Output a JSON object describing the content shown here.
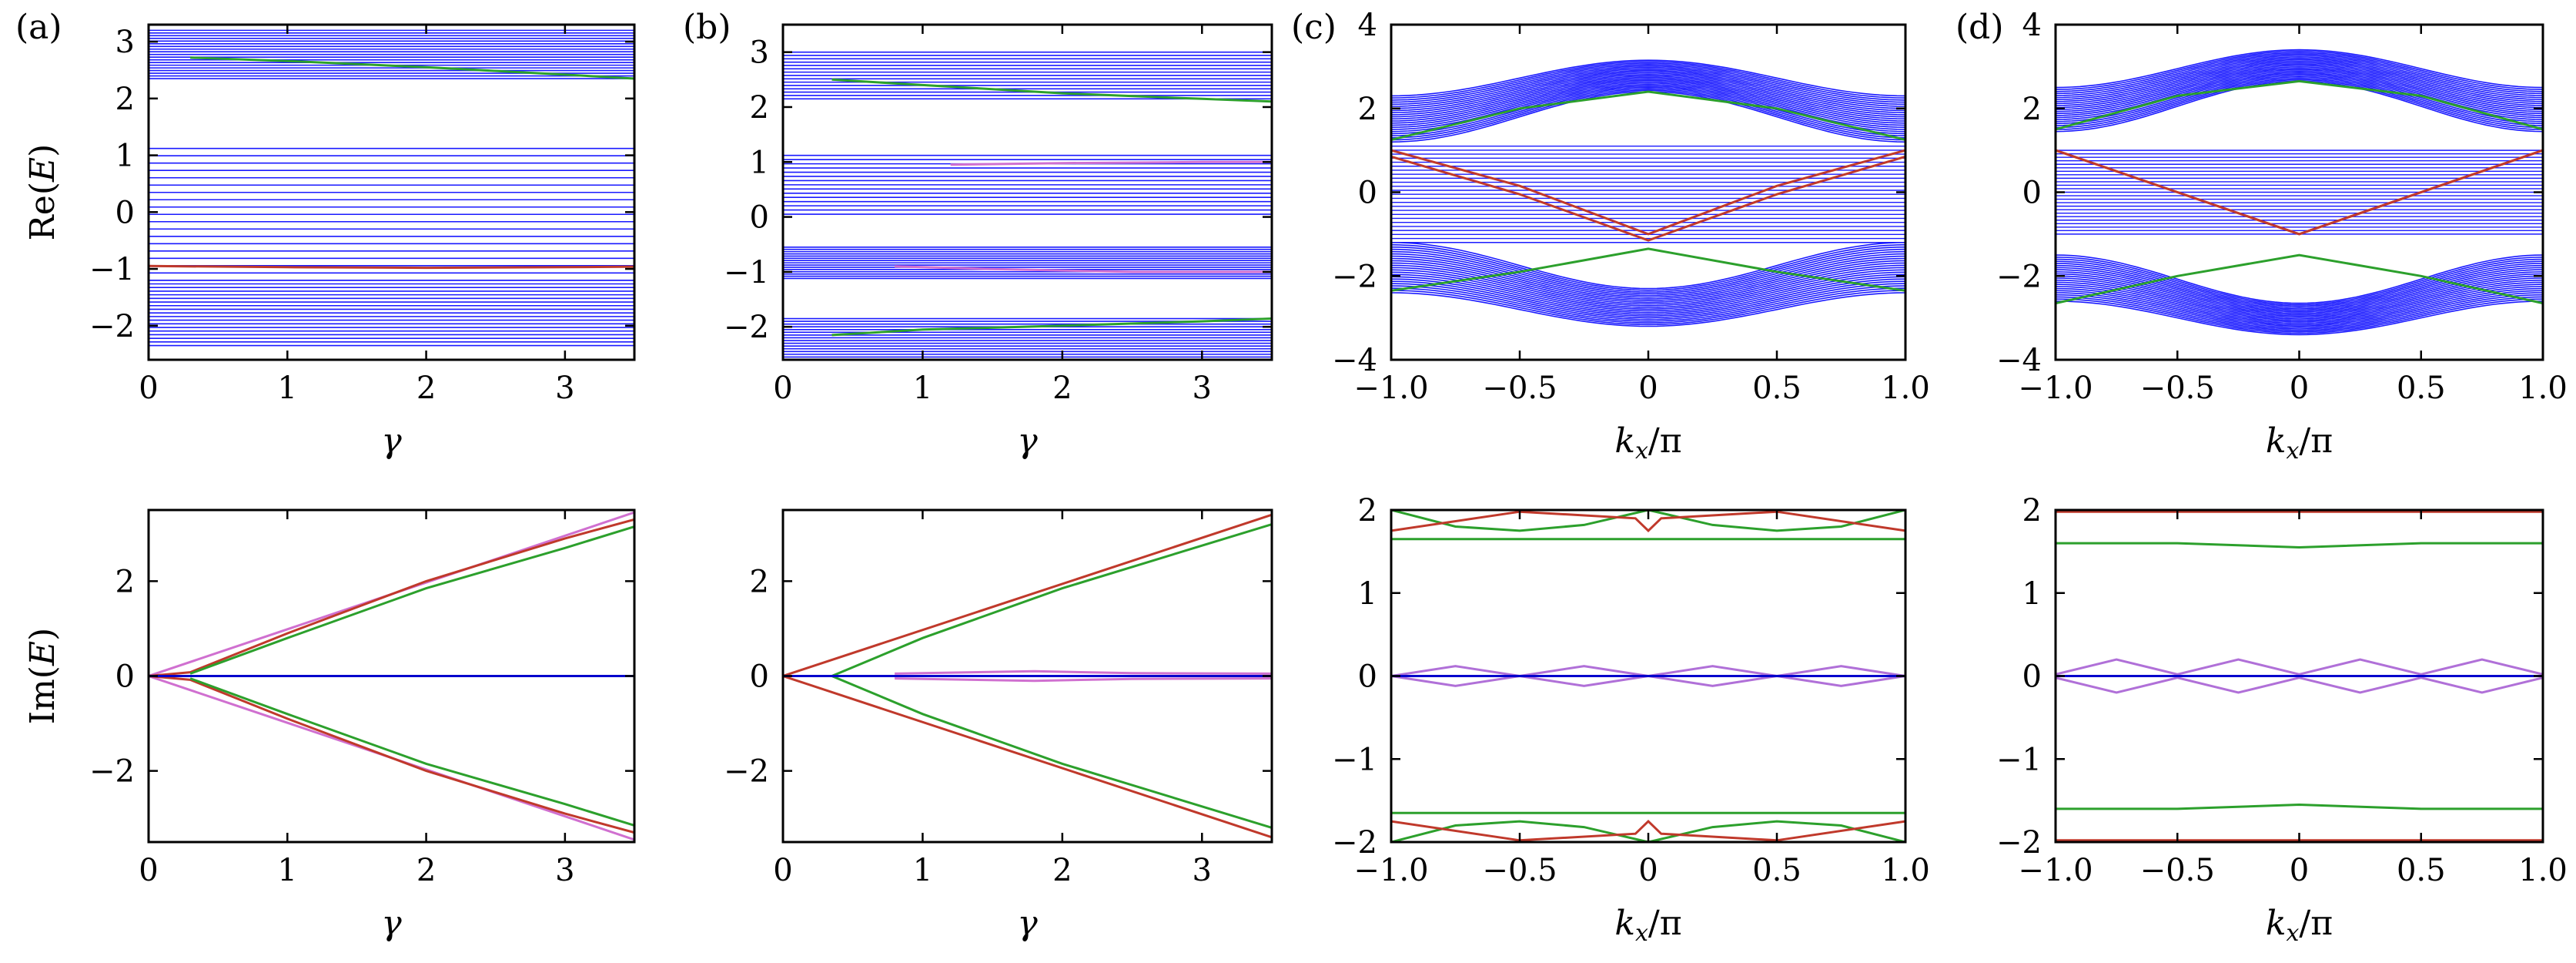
{
  "chart_data": [
    {
      "id": "a-top",
      "panel_label": "(a)",
      "type": "line",
      "xlabel": "γ",
      "ylabel": "Re(E)",
      "xlim": [
        0,
        3.5
      ],
      "ylim": [
        -2.6,
        3.3
      ],
      "xticks": [
        0,
        1,
        2,
        3
      ],
      "xtick_labels": [
        "0",
        "1",
        "2",
        "3"
      ],
      "yticks": [
        -2,
        -1,
        0,
        1,
        2,
        3
      ],
      "ytick_labels": [
        "−2",
        "−1",
        "0",
        "1",
        "2",
        "3"
      ],
      "band_regions": [
        [
          2.35,
          3.2
        ],
        [
          -1.2,
          1.12
        ],
        [
          -2.35,
          -1.2
        ]
      ],
      "band_line_count": 18,
      "series": [
        {
          "color": "#2ca02c",
          "x": [
            0.3,
            1.0,
            2.0,
            3.0,
            3.5
          ],
          "y": [
            2.72,
            2.66,
            2.55,
            2.42,
            2.35
          ]
        },
        {
          "color": "#c0392b",
          "x": [
            0,
            1,
            2,
            3,
            3.5
          ],
          "y": [
            -0.95,
            -0.97,
            -0.98,
            -0.97,
            -0.96
          ]
        }
      ]
    },
    {
      "id": "b-top",
      "panel_label": "(b)",
      "type": "line",
      "xlabel": "γ",
      "ylabel": "",
      "xlim": [
        0,
        3.5
      ],
      "ylim": [
        -2.6,
        3.5
      ],
      "xticks": [
        0,
        1,
        2,
        3
      ],
      "xtick_labels": [
        "0",
        "1",
        "2",
        "3"
      ],
      "yticks": [
        -2,
        -1,
        0,
        1,
        2,
        3
      ],
      "ytick_labels": [
        "−2",
        "−1",
        "0",
        "1",
        "2",
        "3"
      ],
      "band_regions": [
        [
          2.15,
          3.0
        ],
        [
          0.05,
          1.12
        ],
        [
          -1.12,
          -0.55
        ],
        [
          -2.55,
          -1.85
        ]
      ],
      "band_line_count": 14,
      "series": [
        {
          "color": "#2ca02c",
          "x": [
            0.35,
            1.0,
            2.0,
            3.0,
            3.5
          ],
          "y": [
            2.5,
            2.4,
            2.25,
            2.15,
            2.1
          ]
        },
        {
          "color": "#2ca02c",
          "x": [
            0.35,
            1.0,
            2.0,
            3.0,
            3.5
          ],
          "y": [
            -2.15,
            -2.05,
            -1.98,
            -1.9,
            -1.85
          ]
        },
        {
          "color": "#d070d0",
          "x": [
            1.2,
            2.0,
            3.0,
            3.5
          ],
          "y": [
            0.95,
            0.98,
            1.0,
            1.0
          ]
        },
        {
          "color": "#d070d0",
          "x": [
            0.8,
            1.5,
            2.5,
            3.5
          ],
          "y": [
            -0.9,
            -0.95,
            -1.0,
            -1.0
          ]
        }
      ]
    },
    {
      "id": "c-top",
      "panel_label": "(c)",
      "type": "line",
      "xlabel": "kx/π",
      "ylabel": "",
      "xlim": [
        -1,
        1
      ],
      "ylim": [
        -4,
        4
      ],
      "xticks": [
        -1,
        -0.5,
        0,
        0.5,
        1
      ],
      "xtick_labels": [
        "−1.0",
        "−0.5",
        "0",
        "0.5",
        "1.0"
      ],
      "yticks": [
        -4,
        -2,
        0,
        2,
        4
      ],
      "ytick_labels": [
        "−4",
        "−2",
        "0",
        "2",
        "4"
      ],
      "band_curves": [
        {
          "top": [
            2.3,
            3.15
          ],
          "bottom": [
            1.2,
            2.4
          ]
        },
        {
          "top": [
            -1.2,
            -2.3
          ],
          "bottom": [
            -2.4,
            -3.2
          ]
        }
      ],
      "flat_band": [
        -1.2,
        1.1
      ],
      "series": [
        {
          "color": "#2ca02c",
          "x": [
            -1,
            -0.5,
            0,
            0.5,
            1
          ],
          "y": [
            1.25,
            2.0,
            2.4,
            2.0,
            1.25
          ]
        },
        {
          "color": "#2ca02c",
          "x": [
            -1,
            -0.5,
            0,
            0.5,
            1
          ],
          "y": [
            -2.35,
            -1.9,
            -1.35,
            -1.9,
            -2.35
          ]
        },
        {
          "color": "#c0392b",
          "x": [
            -1,
            -0.5,
            0,
            0.5,
            1
          ],
          "y": [
            1.0,
            0.15,
            -1.0,
            0.15,
            1.0
          ]
        },
        {
          "color": "#c0392b",
          "x": [
            -1,
            -0.5,
            0,
            0.5,
            1
          ],
          "y": [
            0.85,
            -0.05,
            -1.15,
            -0.05,
            0.85
          ]
        }
      ]
    },
    {
      "id": "d-top",
      "panel_label": "(d)",
      "type": "line",
      "xlabel": "kx/π",
      "ylabel": "",
      "xlim": [
        -1,
        1
      ],
      "ylim": [
        -4,
        4
      ],
      "xticks": [
        -1,
        -0.5,
        0,
        0.5,
        1
      ],
      "xtick_labels": [
        "−1.0",
        "−0.5",
        "0",
        "0.5",
        "1.0"
      ],
      "yticks": [
        -4,
        -2,
        0,
        2,
        4
      ],
      "ytick_labels": [
        "−4",
        "−2",
        "0",
        "2",
        "4"
      ],
      "band_curves": [
        {
          "top": [
            2.5,
            3.4
          ],
          "bottom": [
            1.45,
            2.65
          ]
        },
        {
          "top": [
            -1.5,
            -2.65
          ],
          "bottom": [
            -2.6,
            -3.4
          ]
        }
      ],
      "flat_band": [
        -1.0,
        1.0
      ],
      "series": [
        {
          "color": "#2ca02c",
          "x": [
            -1,
            -0.5,
            0,
            0.5,
            1
          ],
          "y": [
            1.5,
            2.3,
            2.65,
            2.3,
            1.5
          ]
        },
        {
          "color": "#2ca02c",
          "x": [
            -1,
            -0.5,
            0,
            0.5,
            1
          ],
          "y": [
            -2.65,
            -2.0,
            -1.5,
            -2.0,
            -2.65
          ]
        },
        {
          "color": "#c0392b",
          "x": [
            -1,
            -0.5,
            0,
            0.5,
            1
          ],
          "y": [
            1.0,
            0.0,
            -1.0,
            0.0,
            1.0
          ]
        },
        {
          "color": "#c0392b",
          "x": [
            -1,
            -0.5,
            0,
            0.5,
            1
          ],
          "y": [
            1.0,
            0.0,
            -1.0,
            0.0,
            1.0
          ]
        }
      ]
    },
    {
      "id": "a-bottom",
      "type": "line",
      "xlabel": "γ",
      "ylabel": "Im(E)",
      "xlim": [
        0,
        3.5
      ],
      "ylim": [
        -3.5,
        3.5
      ],
      "xticks": [
        0,
        1,
        2,
        3
      ],
      "xtick_labels": [
        "0",
        "1",
        "2",
        "3"
      ],
      "yticks": [
        -2,
        0,
        2
      ],
      "ytick_labels": [
        "−2",
        "0",
        "2"
      ],
      "series": [
        {
          "color": "#d070d0",
          "x": [
            0,
            3.5
          ],
          "y": [
            0,
            3.45
          ]
        },
        {
          "color": "#d070d0",
          "x": [
            0,
            3.5
          ],
          "y": [
            0,
            -3.45
          ]
        },
        {
          "color": "#c0392b",
          "x": [
            0,
            0.3,
            1,
            2,
            3,
            3.5
          ],
          "y": [
            0,
            0.08,
            0.9,
            2.0,
            2.9,
            3.3
          ]
        },
        {
          "color": "#c0392b",
          "x": [
            0,
            0.3,
            1,
            2,
            3,
            3.5
          ],
          "y": [
            0,
            -0.08,
            -0.9,
            -2.0,
            -2.9,
            -3.3
          ]
        },
        {
          "color": "#2ca02c",
          "x": [
            0.3,
            1,
            2,
            3,
            3.5
          ],
          "y": [
            0.05,
            0.8,
            1.85,
            2.7,
            3.15
          ]
        },
        {
          "color": "#2ca02c",
          "x": [
            0.3,
            1,
            2,
            3,
            3.5
          ],
          "y": [
            -0.05,
            -0.8,
            -1.85,
            -2.7,
            -3.15
          ]
        },
        {
          "color": "#0000cc",
          "x": [
            0,
            3.5
          ],
          "y": [
            0,
            0
          ]
        }
      ]
    },
    {
      "id": "b-bottom",
      "type": "line",
      "xlabel": "γ",
      "ylabel": "",
      "xlim": [
        0,
        3.5
      ],
      "ylim": [
        -3.5,
        3.5
      ],
      "xticks": [
        0,
        1,
        2,
        3
      ],
      "xtick_labels": [
        "0",
        "1",
        "2",
        "3"
      ],
      "yticks": [
        -2,
        0,
        2
      ],
      "ytick_labels": [
        "−2",
        "0",
        "2"
      ],
      "series": [
        {
          "color": "#c0392b",
          "x": [
            0,
            3.5
          ],
          "y": [
            0,
            3.4
          ]
        },
        {
          "color": "#c0392b",
          "x": [
            0,
            3.5
          ],
          "y": [
            0,
            -3.4
          ]
        },
        {
          "color": "#2ca02c",
          "x": [
            0.35,
            1,
            2,
            3,
            3.5
          ],
          "y": [
            0,
            0.8,
            1.85,
            2.75,
            3.2
          ]
        },
        {
          "color": "#2ca02c",
          "x": [
            0.35,
            1,
            2,
            3,
            3.5
          ],
          "y": [
            0,
            -0.8,
            -1.85,
            -2.75,
            -3.2
          ]
        },
        {
          "color": "#d070d0",
          "x": [
            0.8,
            1.8,
            2.5,
            3.5
          ],
          "y": [
            0.05,
            0.1,
            0.06,
            0.05
          ]
        },
        {
          "color": "#d070d0",
          "x": [
            0.8,
            1.8,
            2.5,
            3.5
          ],
          "y": [
            -0.05,
            -0.1,
            -0.06,
            -0.05
          ]
        },
        {
          "color": "#0000cc",
          "x": [
            0,
            3.5
          ],
          "y": [
            0,
            0
          ]
        }
      ]
    },
    {
      "id": "c-bottom",
      "type": "line",
      "xlabel": "kx/π",
      "ylabel": "",
      "xlim": [
        -1,
        1
      ],
      "ylim": [
        -2,
        2
      ],
      "xticks": [
        -1,
        -0.5,
        0,
        0.5,
        1
      ],
      "xtick_labels": [
        "−1.0",
        "−0.5",
        "0",
        "0.5",
        "1.0"
      ],
      "yticks": [
        -2,
        -1,
        0,
        1,
        2
      ],
      "ytick_labels": [
        "−2",
        "−1",
        "0",
        "1",
        "2"
      ],
      "series": [
        {
          "color": "#2ca02c",
          "x": [
            -1,
            1
          ],
          "y": [
            1.65,
            1.65
          ]
        },
        {
          "color": "#2ca02c",
          "x": [
            -1,
            1
          ],
          "y": [
            -1.65,
            -1.65
          ]
        },
        {
          "color": "#2ca02c",
          "x": [
            -1,
            -0.75,
            -0.5,
            -0.25,
            0,
            0.25,
            0.5,
            0.75,
            1
          ],
          "y": [
            2.0,
            1.8,
            1.75,
            1.82,
            2.0,
            1.82,
            1.75,
            1.8,
            2.0
          ]
        },
        {
          "color": "#2ca02c",
          "x": [
            -1,
            -0.75,
            -0.5,
            -0.25,
            0,
            0.25,
            0.5,
            0.75,
            1
          ],
          "y": [
            -2.0,
            -1.8,
            -1.75,
            -1.82,
            -2.0,
            -1.82,
            -1.75,
            -1.8,
            -2.0
          ]
        },
        {
          "color": "#c0392b",
          "x": [
            -1,
            -0.5,
            -0.05,
            0,
            0.05,
            0.5,
            1
          ],
          "y": [
            1.75,
            1.98,
            1.9,
            1.75,
            1.9,
            1.98,
            1.75
          ]
        },
        {
          "color": "#c0392b",
          "x": [
            -1,
            -0.5,
            -0.05,
            0,
            0.05,
            0.5,
            1
          ],
          "y": [
            -1.75,
            -1.98,
            -1.9,
            -1.75,
            -1.9,
            -1.98,
            -1.75
          ]
        },
        {
          "color": "#b070d8",
          "x": [
            -1,
            -0.75,
            -0.5,
            -0.25,
            0
          ],
          "y": [
            0,
            0.12,
            0,
            0.12,
            0
          ]
        },
        {
          "color": "#b070d8",
          "x": [
            -1,
            -0.75,
            -0.5,
            -0.25,
            0
          ],
          "y": [
            0,
            -0.12,
            0,
            -0.12,
            0
          ]
        },
        {
          "color": "#b070d8",
          "x": [
            0,
            0.25,
            0.5,
            0.75,
            1
          ],
          "y": [
            0,
            0.12,
            0,
            0.12,
            0
          ]
        },
        {
          "color": "#b070d8",
          "x": [
            0,
            0.25,
            0.5,
            0.75,
            1
          ],
          "y": [
            0,
            -0.12,
            0,
            -0.12,
            0
          ]
        },
        {
          "color": "#0000cc",
          "x": [
            -1,
            1
          ],
          "y": [
            0,
            0
          ]
        }
      ]
    },
    {
      "id": "d-bottom",
      "type": "line",
      "xlabel": "kx/π",
      "ylabel": "",
      "xlim": [
        -1,
        1
      ],
      "ylim": [
        -2,
        2
      ],
      "xticks": [
        -1,
        -0.5,
        0,
        0.5,
        1
      ],
      "xtick_labels": [
        "−1.0",
        "−0.5",
        "0",
        "0.5",
        "1.0"
      ],
      "yticks": [
        -2,
        -1,
        0,
        1,
        2
      ],
      "ytick_labels": [
        "−2",
        "−1",
        "0",
        "1",
        "2"
      ],
      "series": [
        {
          "color": "#2ca02c",
          "x": [
            -1,
            -0.5,
            0,
            0.5,
            1
          ],
          "y": [
            1.6,
            1.6,
            1.55,
            1.6,
            1.6
          ]
        },
        {
          "color": "#2ca02c",
          "x": [
            -1,
            -0.5,
            0,
            0.5,
            1
          ],
          "y": [
            -1.6,
            -1.6,
            -1.55,
            -1.6,
            -1.6
          ]
        },
        {
          "color": "#c0392b",
          "x": [
            -1,
            1
          ],
          "y": [
            1.98,
            1.98
          ]
        },
        {
          "color": "#c0392b",
          "x": [
            -1,
            1
          ],
          "y": [
            -1.98,
            -1.98
          ]
        },
        {
          "color": "#b070d8",
          "x": [
            -1,
            -0.75,
            -0.5,
            -0.25,
            0
          ],
          "y": [
            0.02,
            0.2,
            0.02,
            0.2,
            0.02
          ]
        },
        {
          "color": "#b070d8",
          "x": [
            -1,
            -0.75,
            -0.5,
            -0.25,
            0
          ],
          "y": [
            -0.02,
            -0.2,
            -0.02,
            -0.2,
            -0.02
          ]
        },
        {
          "color": "#b070d8",
          "x": [
            0,
            0.25,
            0.5,
            0.75,
            1
          ],
          "y": [
            0.02,
            0.2,
            0.02,
            0.2,
            0.02
          ]
        },
        {
          "color": "#b070d8",
          "x": [
            0,
            0.25,
            0.5,
            0.75,
            1
          ],
          "y": [
            -0.02,
            -0.2,
            -0.02,
            -0.2,
            -0.02
          ]
        },
        {
          "color": "#0000cc",
          "x": [
            -1,
            1
          ],
          "y": [
            0,
            0
          ]
        }
      ]
    }
  ],
  "colors": {
    "band_blue": "#1a1aff",
    "axis": "#000000"
  }
}
